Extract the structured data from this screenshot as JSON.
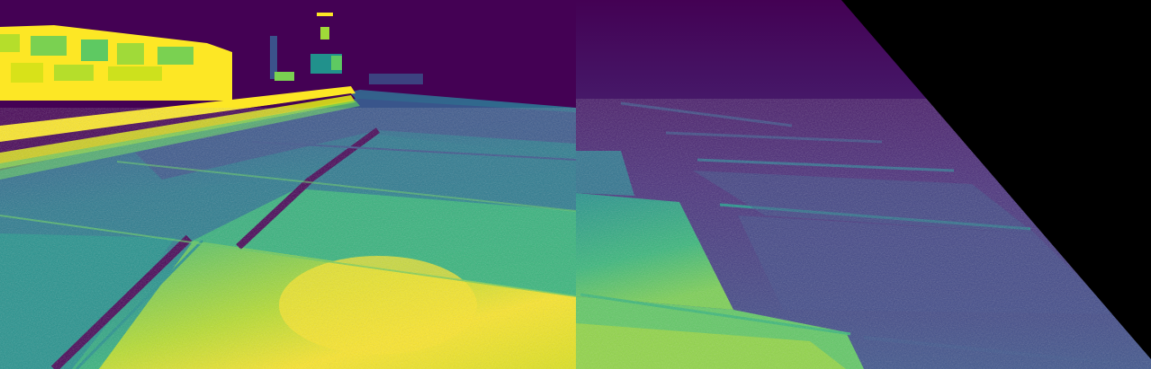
{
  "image": {
    "kind": "false-color thermal composite of a road scene",
    "colormap": "viridis",
    "panels": [
      "left-camera-view",
      "right-warped-view"
    ],
    "colors": {
      "background": "#000000",
      "low": "#440154",
      "low_mid": "#3b528b",
      "mid": "#21918c",
      "high_mid": "#5ec962",
      "high": "#fde725"
    }
  }
}
